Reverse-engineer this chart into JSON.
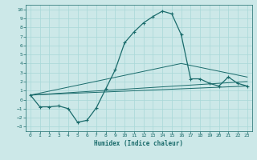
{
  "xlabel": "Humidex (Indice chaleur)",
  "xlim": [
    -0.5,
    23.5
  ],
  "ylim": [
    -3.5,
    10.5
  ],
  "xticks": [
    0,
    1,
    2,
    3,
    4,
    5,
    6,
    7,
    8,
    9,
    10,
    11,
    12,
    13,
    14,
    15,
    16,
    17,
    18,
    19,
    20,
    21,
    22,
    23
  ],
  "yticks": [
    -3,
    -2,
    -1,
    0,
    1,
    2,
    3,
    4,
    5,
    6,
    7,
    8,
    9,
    10
  ],
  "bg_color": "#cce8e8",
  "line_color": "#1a6b6b",
  "grid_color": "#a8d8d8",
  "curve_x": [
    0,
    1,
    2,
    3,
    4,
    5,
    6,
    7,
    8,
    9,
    10,
    11,
    12,
    13,
    14,
    15,
    16,
    17,
    18,
    19,
    20,
    21,
    22,
    23
  ],
  "curve_y": [
    0.5,
    -0.8,
    -0.8,
    -0.7,
    -1.0,
    -2.5,
    -2.3,
    -0.9,
    1.2,
    3.3,
    6.3,
    7.5,
    8.5,
    9.2,
    9.8,
    9.5,
    7.2,
    2.3,
    2.3,
    1.8,
    1.5,
    2.5,
    1.8,
    1.5
  ],
  "line1_x": [
    0,
    23
  ],
  "line1_y": [
    0.5,
    1.5
  ],
  "line2_x": [
    0,
    23
  ],
  "line2_y": [
    0.5,
    2.0
  ],
  "line3_x": [
    0,
    16,
    23
  ],
  "line3_y": [
    0.5,
    4.0,
    2.5
  ]
}
